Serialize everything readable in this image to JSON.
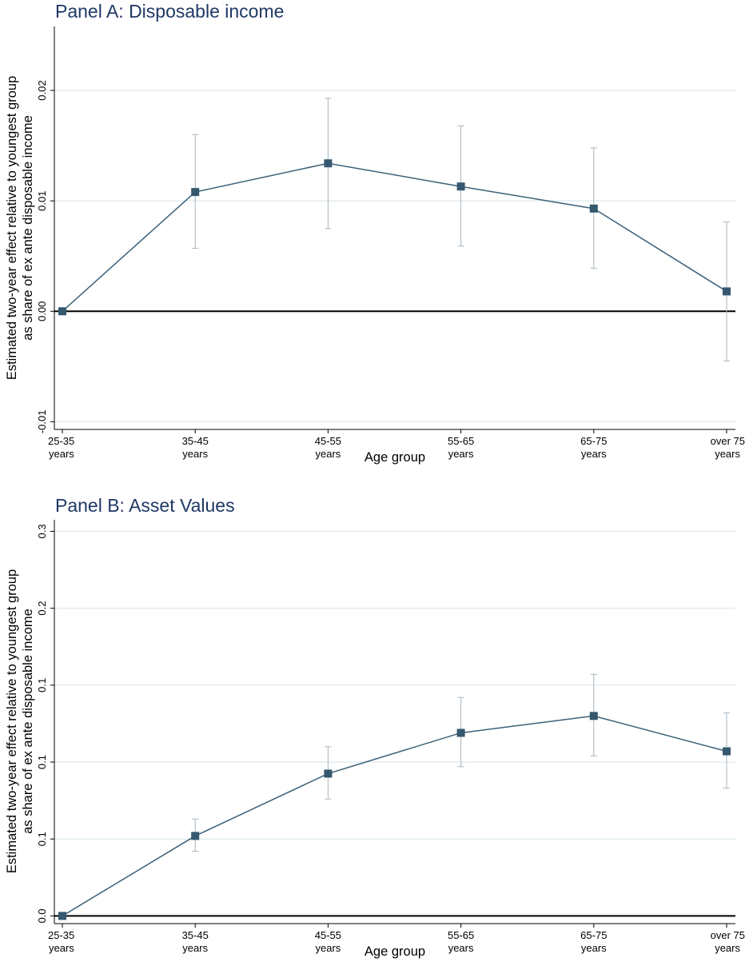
{
  "colors": {
    "title": "#1f3864",
    "series": "#3b6078",
    "marker": "#35586f",
    "ci": "#a7b6bf",
    "grid": "#e2ecef",
    "zero_line": "#000000",
    "axis": "#000000"
  },
  "chart_data": [
    {
      "type": "line",
      "title": "Panel A: Disposable income",
      "xlabel": "Age group",
      "ylabel": [
        "Estimated two-year effect relative to youngest group",
        "as share of ex ante disposable income"
      ],
      "categories": [
        [
          "25-35",
          "years"
        ],
        [
          "35-45",
          "years"
        ],
        [
          "45-55",
          "years"
        ],
        [
          "55-65",
          "years"
        ],
        [
          "65-75",
          "years"
        ],
        [
          "over 75",
          "years"
        ]
      ],
      "ylim": [
        -0.0107,
        0.0258
      ],
      "yticks": [
        -0.01,
        0,
        0.01,
        0.02
      ],
      "ytick_labels": [
        "-0.01",
        "0.00",
        "0.01",
        "0.02"
      ],
      "grid": true,
      "marker": "square",
      "series": [
        {
          "values": [
            0.0,
            0.0108,
            0.0134,
            0.0113,
            0.0093,
            0.0018
          ],
          "ci_low": [
            0.0,
            0.0057,
            0.0075,
            0.0059,
            0.0039,
            -0.0045
          ],
          "ci_high": [
            0.0,
            0.016,
            0.0193,
            0.0168,
            0.0148,
            0.0081
          ]
        }
      ]
    },
    {
      "type": "line",
      "title": "Panel B: Asset Values",
      "xlabel": "Age group",
      "ylabel": [
        "Estimated two-year effect relative to youngest group",
        "as share of ex ante disposable income"
      ],
      "categories": [
        [
          "25-35",
          "years"
        ],
        [
          "35-45",
          "years"
        ],
        [
          "45-55",
          "years"
        ],
        [
          "55-65",
          "years"
        ],
        [
          "65-75",
          "years"
        ],
        [
          "over 75",
          "years"
        ]
      ],
      "ylim": [
        -0.005,
        0.2575
      ],
      "yticks": [
        0,
        0.05,
        0.1,
        0.15,
        0.2,
        0.25
      ],
      "ytick_labels": [
        "0.0",
        "0.1",
        "0.1",
        "0.1",
        "0.2",
        "0.3"
      ],
      "grid": true,
      "marker": "square",
      "series": [
        {
          "values": [
            0.0,
            0.052,
            0.0925,
            0.119,
            0.13,
            0.107
          ],
          "ci_low": [
            0.0,
            0.042,
            0.076,
            0.097,
            0.104,
            0.083
          ],
          "ci_high": [
            0.0,
            0.063,
            0.11,
            0.142,
            0.157,
            0.132
          ]
        }
      ]
    }
  ]
}
